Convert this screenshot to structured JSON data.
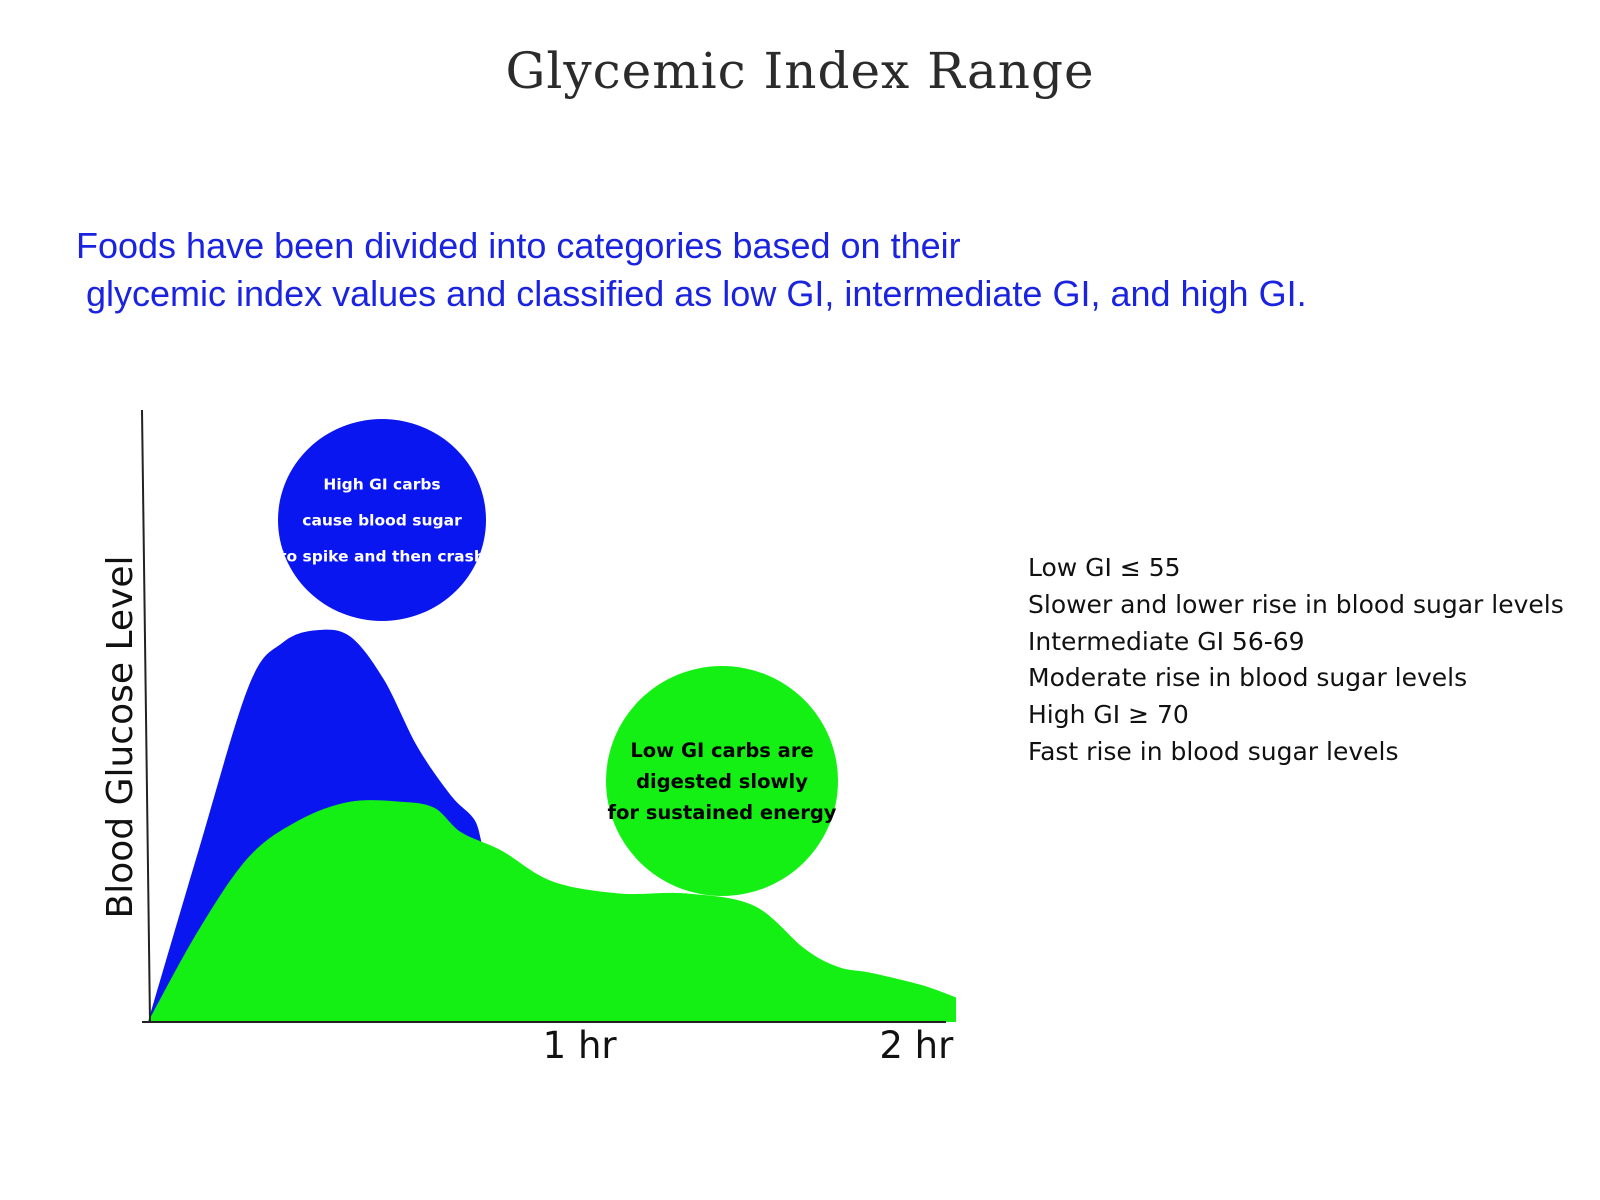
{
  "title": "Glycemic Index Range",
  "intro": {
    "line1": "Foods have been divided into categories based on their",
    "line2": "glycemic index values and classified as low GI, intermediate GI, and high GI."
  },
  "legend": [
    "Low GI ≤ 55",
    "Slower and lower rise in blood sugar levels",
    "Intermediate GI 56-69",
    "Moderate rise in blood sugar levels",
    "High GI ≥ 70",
    "Fast rise in blood sugar levels"
  ],
  "colors": {
    "high": "#0a16f0",
    "low": "#14f014",
    "axis": "#222222",
    "text": "#111111",
    "intro": "#1a23e0"
  },
  "chart_data": {
    "type": "area",
    "ylabel": "Blood Glucose Level",
    "xlabel": "",
    "x_ticks": [
      {
        "value": 1,
        "label": "1 hr"
      },
      {
        "value": 2,
        "label": "2 hr"
      }
    ],
    "xlim": [
      0,
      2.4
    ],
    "ylim": [
      0,
      1
    ],
    "series": [
      {
        "key": "high",
        "x": [
          0,
          0.15,
          0.3,
          0.4,
          0.5,
          0.6,
          0.7,
          0.8,
          0.9,
          0.97,
          1.0,
          1.05,
          1.2,
          1.4
        ],
        "values": [
          0.0,
          0.28,
          0.55,
          0.62,
          0.64,
          0.63,
          0.56,
          0.45,
          0.37,
          0.33,
          0.28,
          0.26,
          0.21,
          0.17
        ]
      },
      {
        "key": "low",
        "x": [
          0,
          0.15,
          0.3,
          0.45,
          0.6,
          0.75,
          0.85,
          0.93,
          1.05,
          1.2,
          1.4,
          1.6,
          1.8,
          1.95,
          2.05,
          2.15,
          2.3,
          2.4
        ],
        "values": [
          0.0,
          0.15,
          0.27,
          0.33,
          0.36,
          0.36,
          0.35,
          0.31,
          0.28,
          0.23,
          0.21,
          0.21,
          0.19,
          0.12,
          0.09,
          0.08,
          0.06,
          0.04
        ]
      }
    ],
    "annotations": [
      {
        "key": "high",
        "lines": [
          "High GI carbs",
          "cause  blood sugar",
          "to spike and then crash"
        ]
      },
      {
        "key": "low",
        "lines": [
          "Low GI  carbs are",
          "digested slowly",
          "for sustained energy"
        ]
      }
    ]
  }
}
